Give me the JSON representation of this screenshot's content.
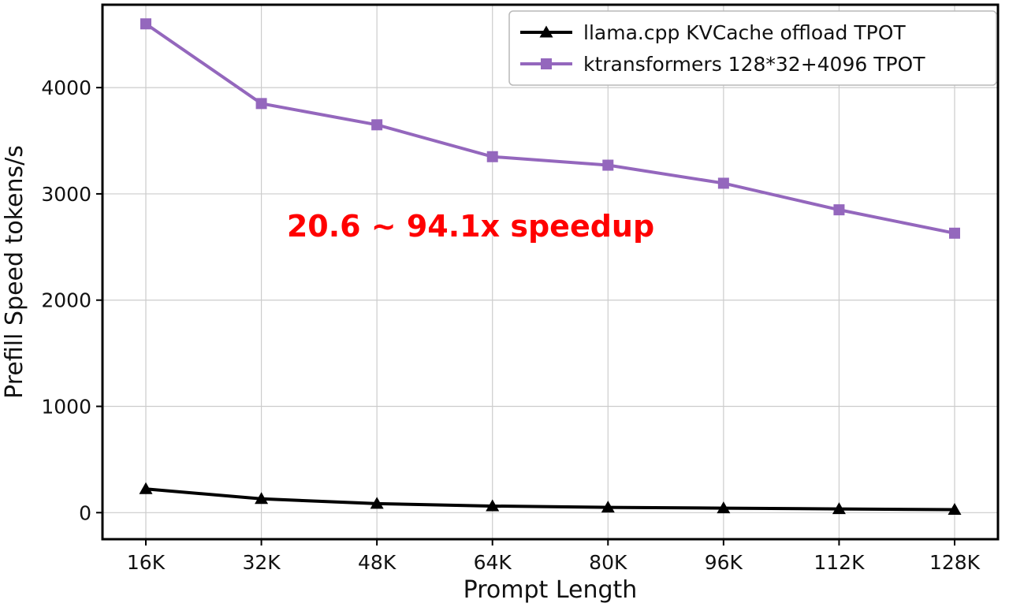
{
  "chart_data": {
    "type": "line",
    "title": "",
    "xlabel": "Prompt Length",
    "ylabel": "Prefill Speed tokens/s",
    "categories": [
      "16K",
      "32K",
      "48K",
      "64K",
      "80K",
      "96K",
      "112K",
      "128K"
    ],
    "series": [
      {
        "name": "llama.cpp KVCache offload TPOT",
        "color": "#000000",
        "marker": "triangle-up",
        "values": [
          223,
          130,
          85,
          62,
          50,
          42,
          35,
          28
        ]
      },
      {
        "name": "ktransformers 128*32+4096 TPOT",
        "color": "#9467bd",
        "marker": "square",
        "values": [
          4600,
          3850,
          3650,
          3350,
          3270,
          3100,
          2850,
          2630
        ]
      }
    ],
    "yticks": [
      0,
      1000,
      2000,
      3000,
      4000
    ],
    "ylim": [
      -250,
      4780
    ],
    "grid": true,
    "legend_position": "upper right",
    "annotation": {
      "text": "20.6 ~ 94.1x speedup",
      "color": "#ff0000"
    }
  }
}
